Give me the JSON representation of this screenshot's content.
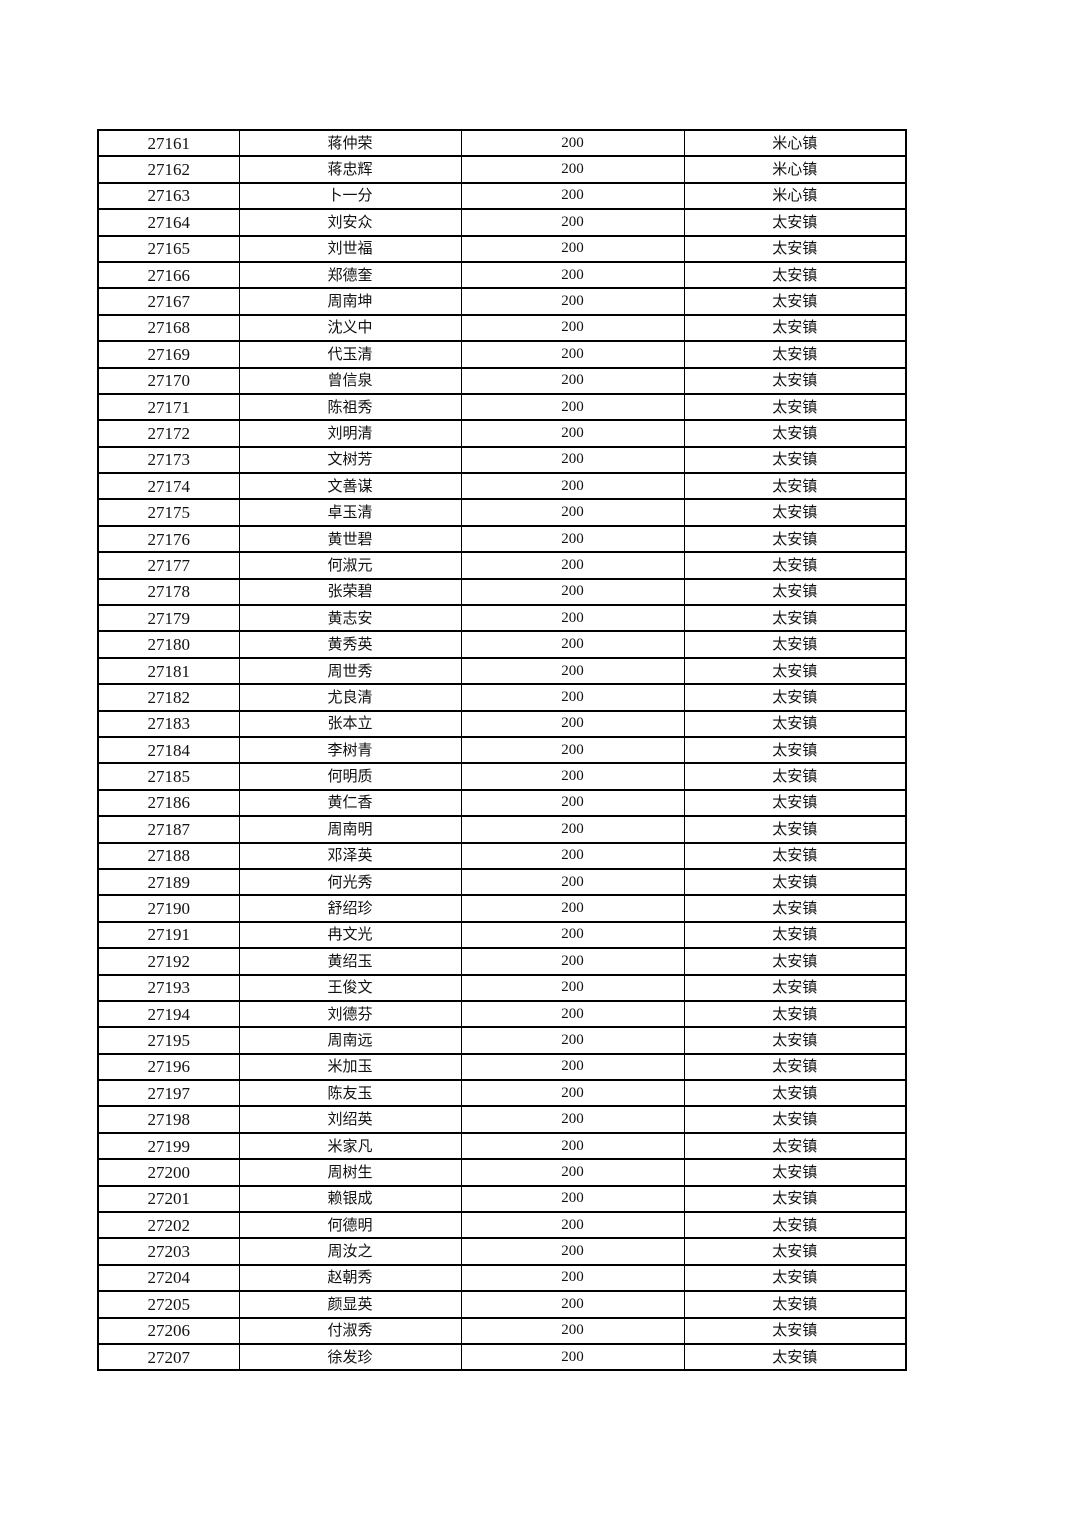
{
  "table": {
    "rows": [
      [
        "27161",
        "蒋仲荣",
        "200",
        "米心镇"
      ],
      [
        "27162",
        "蒋忠辉",
        "200",
        "米心镇"
      ],
      [
        "27163",
        "卜一分",
        "200",
        "米心镇"
      ],
      [
        "27164",
        "刘安众",
        "200",
        "太安镇"
      ],
      [
        "27165",
        "刘世福",
        "200",
        "太安镇"
      ],
      [
        "27166",
        "郑德奎",
        "200",
        "太安镇"
      ],
      [
        "27167",
        "周南坤",
        "200",
        "太安镇"
      ],
      [
        "27168",
        "沈义中",
        "200",
        "太安镇"
      ],
      [
        "27169",
        "代玉清",
        "200",
        "太安镇"
      ],
      [
        "27170",
        "曾信泉",
        "200",
        "太安镇"
      ],
      [
        "27171",
        "陈祖秀",
        "200",
        "太安镇"
      ],
      [
        "27172",
        "刘明清",
        "200",
        "太安镇"
      ],
      [
        "27173",
        "文树芳",
        "200",
        "太安镇"
      ],
      [
        "27174",
        "文善谋",
        "200",
        "太安镇"
      ],
      [
        "27175",
        "卓玉清",
        "200",
        "太安镇"
      ],
      [
        "27176",
        "黄世碧",
        "200",
        "太安镇"
      ],
      [
        "27177",
        "何淑元",
        "200",
        "太安镇"
      ],
      [
        "27178",
        "张荣碧",
        "200",
        "太安镇"
      ],
      [
        "27179",
        "黄志安",
        "200",
        "太安镇"
      ],
      [
        "27180",
        "黄秀英",
        "200",
        "太安镇"
      ],
      [
        "27181",
        "周世秀",
        "200",
        "太安镇"
      ],
      [
        "27182",
        "尤良清",
        "200",
        "太安镇"
      ],
      [
        "27183",
        "张本立",
        "200",
        "太安镇"
      ],
      [
        "27184",
        "李树青",
        "200",
        "太安镇"
      ],
      [
        "27185",
        "何明质",
        "200",
        "太安镇"
      ],
      [
        "27186",
        "黄仁香",
        "200",
        "太安镇"
      ],
      [
        "27187",
        "周南明",
        "200",
        "太安镇"
      ],
      [
        "27188",
        "邓泽英",
        "200",
        "太安镇"
      ],
      [
        "27189",
        "何光秀",
        "200",
        "太安镇"
      ],
      [
        "27190",
        "舒绍珍",
        "200",
        "太安镇"
      ],
      [
        "27191",
        "冉文光",
        "200",
        "太安镇"
      ],
      [
        "27192",
        "黄绍玉",
        "200",
        "太安镇"
      ],
      [
        "27193",
        "王俊文",
        "200",
        "太安镇"
      ],
      [
        "27194",
        "刘德芬",
        "200",
        "太安镇"
      ],
      [
        "27195",
        "周南远",
        "200",
        "太安镇"
      ],
      [
        "27196",
        "米加玉",
        "200",
        "太安镇"
      ],
      [
        "27197",
        "陈友玉",
        "200",
        "太安镇"
      ],
      [
        "27198",
        "刘绍英",
        "200",
        "太安镇"
      ],
      [
        "27199",
        "米家凡",
        "200",
        "太安镇"
      ],
      [
        "27200",
        "周树生",
        "200",
        "太安镇"
      ],
      [
        "27201",
        "赖银成",
        "200",
        "太安镇"
      ],
      [
        "27202",
        "何德明",
        "200",
        "太安镇"
      ],
      [
        "27203",
        "周汝之",
        "200",
        "太安镇"
      ],
      [
        "27204",
        "赵朝秀",
        "200",
        "太安镇"
      ],
      [
        "27205",
        "颜显英",
        "200",
        "太安镇"
      ],
      [
        "27206",
        "付淑秀",
        "200",
        "太安镇"
      ],
      [
        "27207",
        "徐发珍",
        "200",
        "太安镇"
      ]
    ]
  }
}
